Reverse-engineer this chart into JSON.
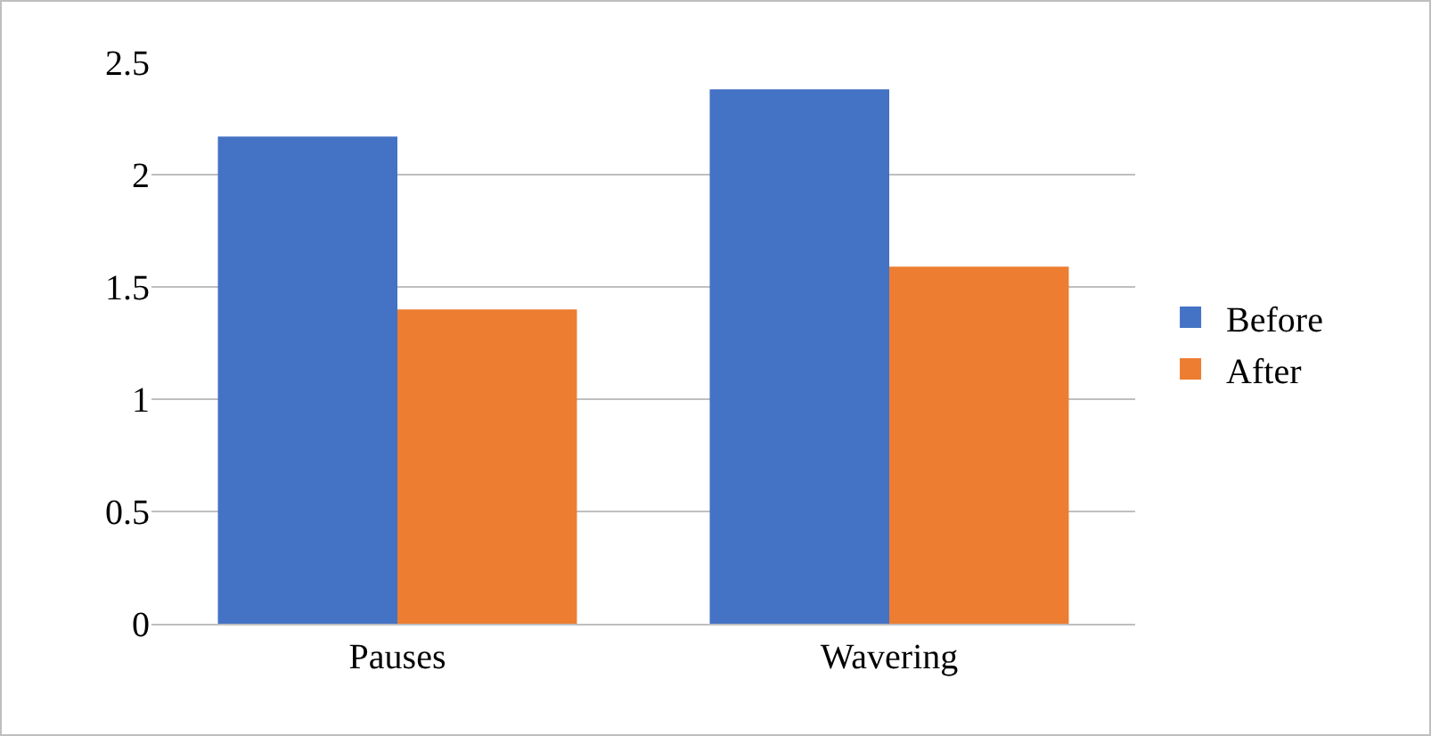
{
  "chart_data": {
    "type": "bar",
    "categories": [
      "Pauses",
      "Wavering"
    ],
    "series": [
      {
        "name": "Before",
        "color": "#4472c4",
        "values": [
          2.17,
          2.38
        ]
      },
      {
        "name": "After",
        "color": "#ed7d31",
        "values": [
          1.4,
          1.59
        ]
      }
    ],
    "ylim": [
      0,
      2.5
    ],
    "yticks": [
      0,
      0.5,
      1,
      1.5,
      2,
      2.5
    ],
    "grid": "y",
    "legend": "right"
  }
}
